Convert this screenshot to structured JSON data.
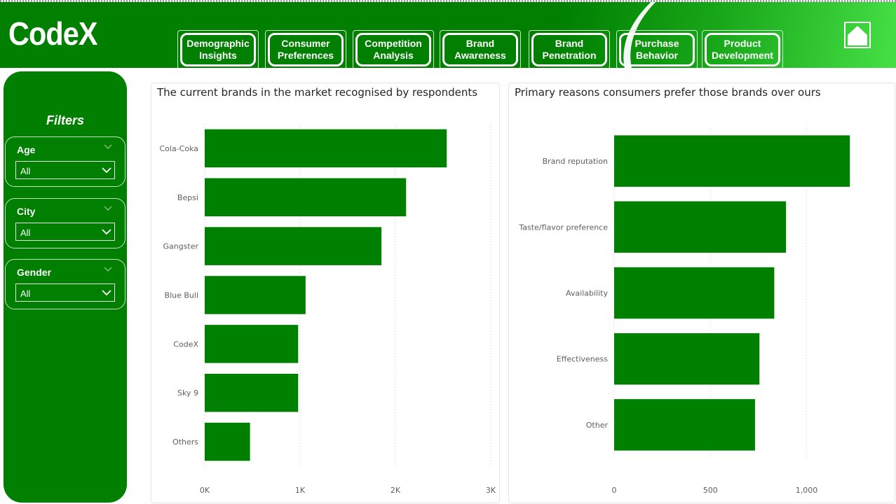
{
  "app": {
    "logo": "CodeX",
    "home_icon": "home-icon",
    "colors": {
      "primary": "#007f00",
      "accent": "#46e046",
      "bar": "#008000"
    }
  },
  "nav": [
    {
      "label": "Demographic\nInsights"
    },
    {
      "label": "Consumer\nPreferences"
    },
    {
      "label": "Competition\nAnalysis"
    },
    {
      "label": "Brand\nAwareness"
    },
    {
      "label": "Brand\nPenetration"
    },
    {
      "label": "Purchase\nBehavior"
    },
    {
      "label": "Product\nDevelopment"
    }
  ],
  "filters": {
    "title": "Filters",
    "items": [
      {
        "label": "Age",
        "value": "All"
      },
      {
        "label": "City",
        "value": "All"
      },
      {
        "label": "Gender",
        "value": "All"
      }
    ]
  },
  "chart_data": [
    {
      "type": "bar",
      "orientation": "horizontal",
      "title": "The current brands in the market recognised by respondents",
      "categories": [
        "Cola-Coka",
        "Bepsi",
        "Gangster",
        "Blue Bull",
        "CodeX",
        "Sky 9",
        "Others"
      ],
      "values": [
        2538,
        2112,
        1854,
        1058,
        980,
        980,
        475
      ],
      "xlim": [
        0,
        3000
      ],
      "ticks": [
        0,
        1000,
        2000,
        3000
      ],
      "tick_labels": [
        "0K",
        "1K",
        "2K",
        "3K"
      ],
      "grid": true,
      "color": "#008000"
    },
    {
      "type": "bar",
      "orientation": "horizontal",
      "title": "Primary reasons consumers prefer those brands over ours",
      "categories": [
        "Brand reputation",
        "Taste/flavor preference",
        "Availability",
        "Effectiveness",
        "Other"
      ],
      "values": [
        1225,
        893,
        832,
        755,
        732
      ],
      "xlim": [
        0,
        1450
      ],
      "ticks": [
        0,
        500,
        1000
      ],
      "tick_labels": [
        "0",
        "500",
        "1,000"
      ],
      "grid": true,
      "color": "#008000"
    }
  ]
}
